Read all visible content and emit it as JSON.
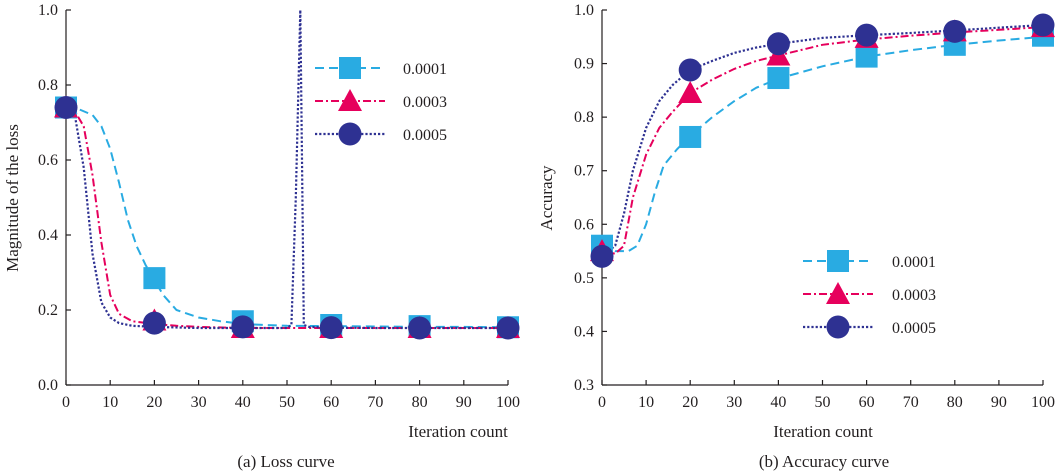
{
  "colors": {
    "series_0001": "#29ABE2",
    "series_0003": "#E6005C",
    "series_0005": "#2E3192",
    "axis": "#231f20"
  },
  "chart_data": [
    {
      "type": "line",
      "caption": "(a) Loss curve",
      "xlabel": "Iteration count",
      "ylabel": "Magnitude of the loss",
      "xlim": [
        0,
        100
      ],
      "ylim": [
        0.0,
        1.0
      ],
      "x_ticks": [
        "0",
        "10",
        "20",
        "30",
        "40",
        "50",
        "60",
        "70",
        "80",
        "90",
        "100"
      ],
      "y_ticks": [
        "0.0",
        "0.2",
        "0.4",
        "0.6",
        "0.8",
        "1.0"
      ],
      "legend_position": "top-right",
      "series": [
        {
          "name": "0.0001",
          "line_style": "dashed",
          "marker": "square",
          "curve": [
            [
              0,
              0.74
            ],
            [
              3,
              0.735
            ],
            [
              6,
              0.72
            ],
            [
              8,
              0.69
            ],
            [
              10,
              0.63
            ],
            [
              12,
              0.54
            ],
            [
              14,
              0.44
            ],
            [
              16,
              0.37
            ],
            [
              18,
              0.32
            ],
            [
              20,
              0.28
            ],
            [
              22,
              0.24
            ],
            [
              25,
              0.2
            ],
            [
              30,
              0.18
            ],
            [
              35,
              0.17
            ],
            [
              40,
              0.163
            ],
            [
              45,
              0.16
            ],
            [
              50,
              0.158
            ],
            [
              60,
              0.157
            ],
            [
              70,
              0.156
            ],
            [
              80,
              0.155
            ],
            [
              90,
              0.155
            ],
            [
              100,
              0.154
            ]
          ],
          "marker_points": [
            [
              0,
              0.74
            ],
            [
              20,
              0.285
            ],
            [
              40,
              0.17
            ],
            [
              60,
              0.16
            ],
            [
              80,
              0.157
            ],
            [
              100,
              0.154
            ]
          ]
        },
        {
          "name": "0.0003",
          "line_style": "dash-dot",
          "marker": "triangle",
          "curve": [
            [
              0,
              0.74
            ],
            [
              2,
              0.73
            ],
            [
              4,
              0.69
            ],
            [
              6,
              0.56
            ],
            [
              8,
              0.38
            ],
            [
              10,
              0.24
            ],
            [
              12,
              0.19
            ],
            [
              15,
              0.17
            ],
            [
              20,
              0.163
            ],
            [
              25,
              0.158
            ],
            [
              30,
              0.155
            ],
            [
              40,
              0.152
            ],
            [
              50,
              0.152
            ],
            [
              60,
              0.152
            ],
            [
              70,
              0.152
            ],
            [
              80,
              0.152
            ],
            [
              90,
              0.152
            ],
            [
              100,
              0.152
            ]
          ],
          "marker_points": [
            [
              0,
              0.74
            ],
            [
              20,
              0.172
            ],
            [
              40,
              0.152
            ],
            [
              60,
              0.152
            ],
            [
              80,
              0.152
            ],
            [
              100,
              0.152
            ]
          ]
        },
        {
          "name": "0.0005",
          "line_style": "dotted",
          "marker": "circle",
          "curve": [
            [
              0,
              0.74
            ],
            [
              2,
              0.72
            ],
            [
              4,
              0.58
            ],
            [
              6,
              0.35
            ],
            [
              8,
              0.22
            ],
            [
              10,
              0.18
            ],
            [
              12,
              0.165
            ],
            [
              15,
              0.158
            ],
            [
              20,
              0.155
            ],
            [
              30,
              0.152
            ],
            [
              40,
              0.152
            ],
            [
              50,
              0.152
            ],
            [
              51,
              0.16
            ],
            [
              52,
              0.5
            ],
            [
              53,
              1.0
            ],
            [
              53.4,
              0.6
            ],
            [
              53.8,
              0.16
            ],
            [
              55,
              0.155
            ],
            [
              60,
              0.153
            ],
            [
              70,
              0.152
            ],
            [
              80,
              0.152
            ],
            [
              90,
              0.152
            ],
            [
              100,
              0.152
            ]
          ],
          "marker_points": [
            [
              0,
              0.74
            ],
            [
              20,
              0.165
            ],
            [
              40,
              0.155
            ],
            [
              60,
              0.153
            ],
            [
              80,
              0.152
            ],
            [
              100,
              0.152
            ]
          ]
        }
      ]
    },
    {
      "type": "line",
      "caption": "(b) Accuracy curve",
      "xlabel": "Iteration count",
      "ylabel": "Accuracy",
      "xlim": [
        0,
        100
      ],
      "ylim": [
        0.3,
        1.0
      ],
      "x_ticks": [
        "0",
        "10",
        "20",
        "30",
        "40",
        "50",
        "60",
        "70",
        "80",
        "90",
        "100"
      ],
      "y_ticks": [
        "0.3",
        "0.4",
        "0.5",
        "0.6",
        "0.7",
        "0.8",
        "0.9",
        "1.0"
      ],
      "legend_position": "bottom-right",
      "series": [
        {
          "name": "0.0001",
          "line_style": "dashed",
          "marker": "square",
          "curve": [
            [
              0,
              0.56
            ],
            [
              3,
              0.55
            ],
            [
              6,
              0.55
            ],
            [
              8,
              0.56
            ],
            [
              10,
              0.6
            ],
            [
              12,
              0.66
            ],
            [
              14,
              0.71
            ],
            [
              17,
              0.74
            ],
            [
              20,
              0.765
            ],
            [
              25,
              0.8
            ],
            [
              30,
              0.83
            ],
            [
              35,
              0.855
            ],
            [
              40,
              0.872
            ],
            [
              50,
              0.895
            ],
            [
              60,
              0.913
            ],
            [
              70,
              0.925
            ],
            [
              80,
              0.935
            ],
            [
              90,
              0.943
            ],
            [
              100,
              0.95
            ]
          ],
          "marker_points": [
            [
              0,
              0.56
            ],
            [
              20,
              0.763
            ],
            [
              40,
              0.873
            ],
            [
              60,
              0.913
            ],
            [
              80,
              0.935
            ],
            [
              100,
              0.952
            ]
          ]
        },
        {
          "name": "0.0003",
          "line_style": "dash-dot",
          "marker": "triangle",
          "curve": [
            [
              0,
              0.55
            ],
            [
              3,
              0.545
            ],
            [
              5,
              0.56
            ],
            [
              7,
              0.65
            ],
            [
              10,
              0.73
            ],
            [
              13,
              0.78
            ],
            [
              16,
              0.81
            ],
            [
              20,
              0.845
            ],
            [
              25,
              0.87
            ],
            [
              30,
              0.89
            ],
            [
              35,
              0.905
            ],
            [
              40,
              0.915
            ],
            [
              50,
              0.935
            ],
            [
              60,
              0.945
            ],
            [
              70,
              0.952
            ],
            [
              80,
              0.958
            ],
            [
              90,
              0.963
            ],
            [
              100,
              0.968
            ]
          ],
          "marker_points": [
            [
              0,
              0.55
            ],
            [
              20,
              0.845
            ],
            [
              40,
              0.915
            ],
            [
              60,
              0.948
            ],
            [
              80,
              0.96
            ],
            [
              100,
              0.968
            ]
          ]
        },
        {
          "name": "0.0005",
          "line_style": "dotted",
          "marker": "circle",
          "curve": [
            [
              0,
              0.54
            ],
            [
              3,
              0.56
            ],
            [
              5,
              0.62
            ],
            [
              7,
              0.7
            ],
            [
              10,
              0.78
            ],
            [
              13,
              0.83
            ],
            [
              16,
              0.86
            ],
            [
              20,
              0.888
            ],
            [
              25,
              0.905
            ],
            [
              30,
              0.92
            ],
            [
              35,
              0.93
            ],
            [
              40,
              0.937
            ],
            [
              50,
              0.948
            ],
            [
              60,
              0.953
            ],
            [
              70,
              0.957
            ],
            [
              80,
              0.962
            ],
            [
              90,
              0.967
            ],
            [
              100,
              0.972
            ]
          ],
          "marker_points": [
            [
              0,
              0.54
            ],
            [
              20,
              0.888
            ],
            [
              40,
              0.937
            ],
            [
              60,
              0.953
            ],
            [
              80,
              0.96
            ],
            [
              100,
              0.972
            ]
          ]
        }
      ]
    }
  ]
}
